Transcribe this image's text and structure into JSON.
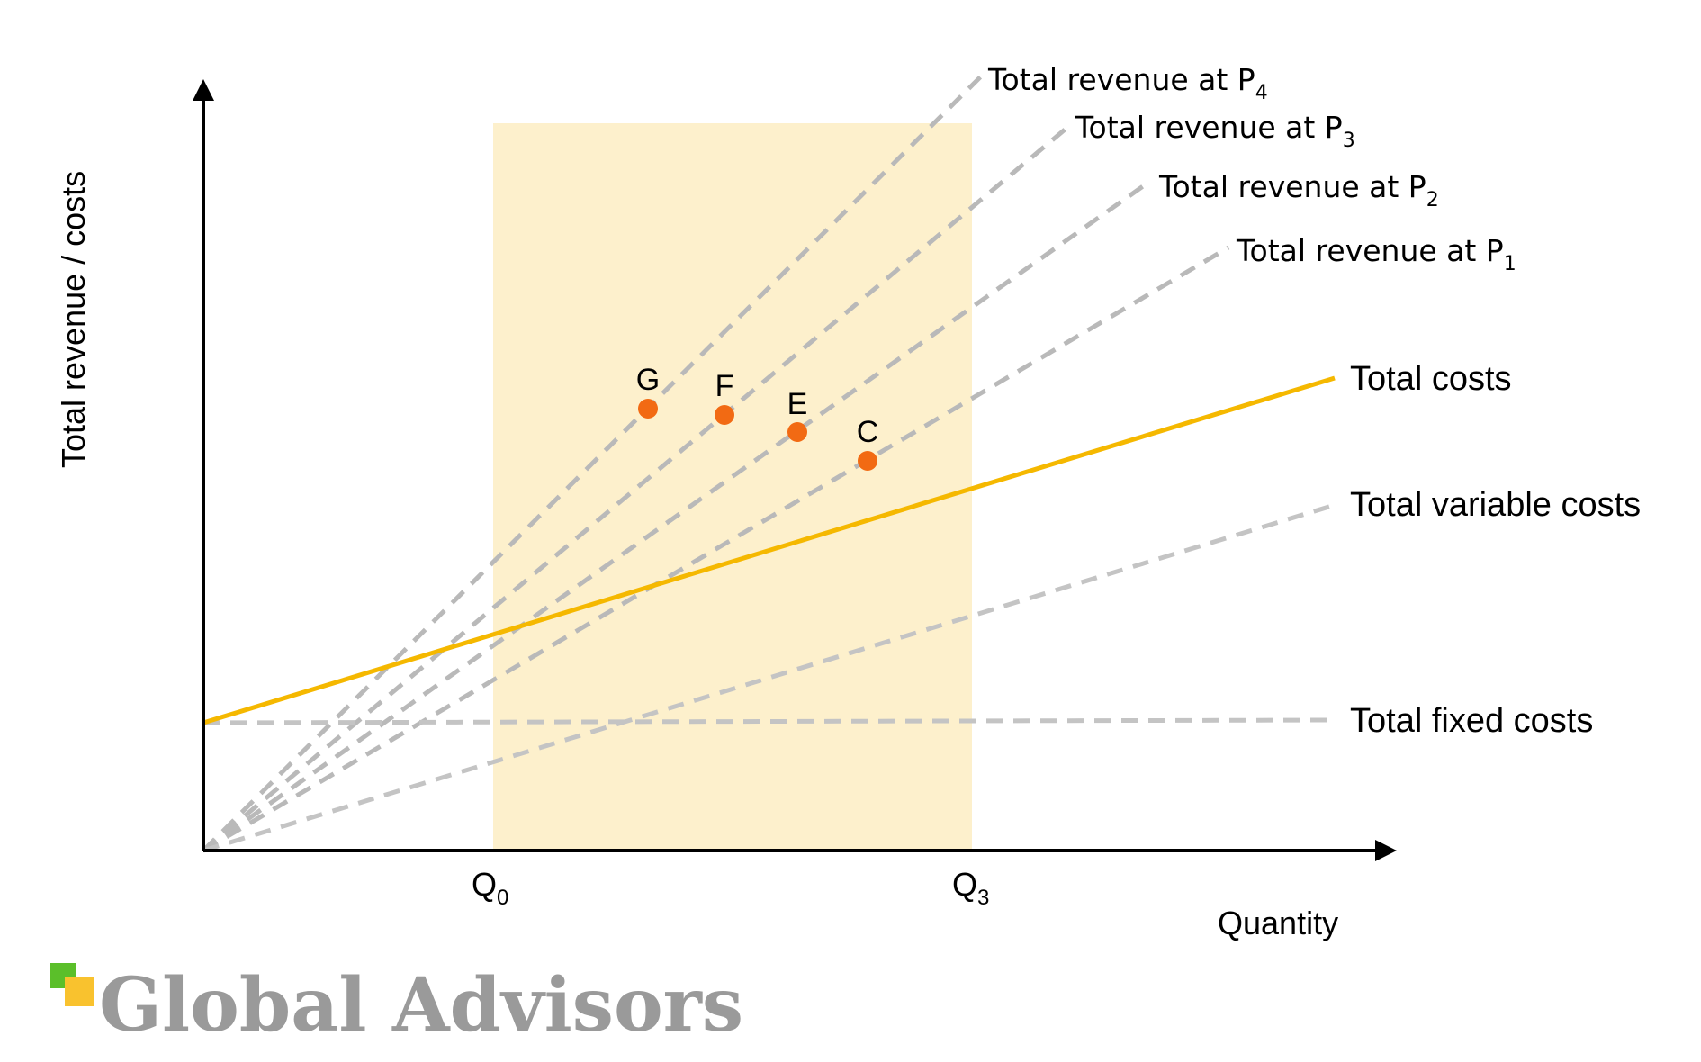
{
  "diagram": {
    "y_axis_label": "Total revenue / costs",
    "x_axis_label": "Quantity",
    "x_ticks": [
      {
        "base": "Q",
        "sub": "0"
      },
      {
        "base": "Q",
        "sub": "3"
      }
    ],
    "revenue_lines": [
      {
        "label": "Total revenue at P",
        "sub": "4"
      },
      {
        "label": "Total revenue at P",
        "sub": "3"
      },
      {
        "label": "Total revenue at P",
        "sub": "2"
      },
      {
        "label": "Total revenue at P",
        "sub": "1"
      }
    ],
    "cost_lines": {
      "total_costs": "Total costs",
      "total_variable_costs": "Total variable costs",
      "total_fixed_costs": "Total fixed costs"
    },
    "points": [
      "G",
      "F",
      "E",
      "C"
    ],
    "colors": {
      "total_costs": "#f5b800",
      "dashed": "#b9b9b9",
      "points": "#f26a13",
      "highlight": "#fdf0cc",
      "axis": "#000000"
    }
  },
  "brand": {
    "name": "Global Advisors",
    "icon": "overlapping-squares-icon",
    "colors": [
      "#5bbf2a",
      "#f9c22e"
    ]
  }
}
